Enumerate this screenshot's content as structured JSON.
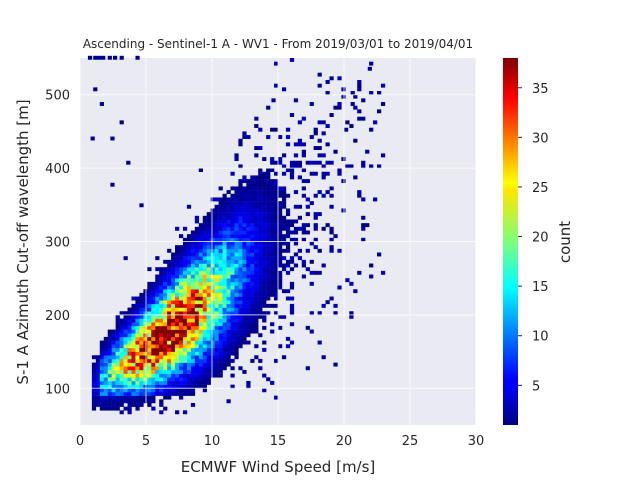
{
  "chart_data": {
    "type": "heatmap",
    "title": "Ascending - Sentinel-1 A - WV1 - From 2019/03/01 to 2019/04/01",
    "xlabel": "ECMWF Wind Speed [m/s]",
    "ylabel": "S-1 A Azimuth Cut-off wavelength [m]",
    "xlim": [
      0,
      30
    ],
    "ylim": [
      50,
      550
    ],
    "xticks": [
      "0",
      "5",
      "10",
      "15",
      "20",
      "25",
      "30"
    ],
    "yticks": [
      "100",
      "200",
      "300",
      "400",
      "500"
    ],
    "xtick_values": [
      0,
      5,
      10,
      15,
      20,
      25,
      30
    ],
    "ytick_values": [
      100,
      200,
      300,
      400,
      500
    ],
    "grid": true,
    "bin_size": [
      0.3,
      5
    ],
    "colorbar": {
      "label": "count",
      "colormap": "jet",
      "range": [
        1,
        38
      ],
      "ticks": [
        "5",
        "10",
        "15",
        "20",
        "25",
        "30",
        "35"
      ],
      "tick_values": [
        5,
        10,
        15,
        20,
        25,
        30,
        35
      ]
    },
    "density_model": {
      "ridge_x": [
        2,
        5,
        8,
        10,
        12,
        15,
        18
      ],
      "ridge_y": [
        115,
        150,
        195,
        225,
        265,
        310,
        365
      ],
      "x_peak": 6.5,
      "peak_count": 38
    },
    "background_color": "#eaeaf2",
    "grid_color": "#ffffff"
  }
}
